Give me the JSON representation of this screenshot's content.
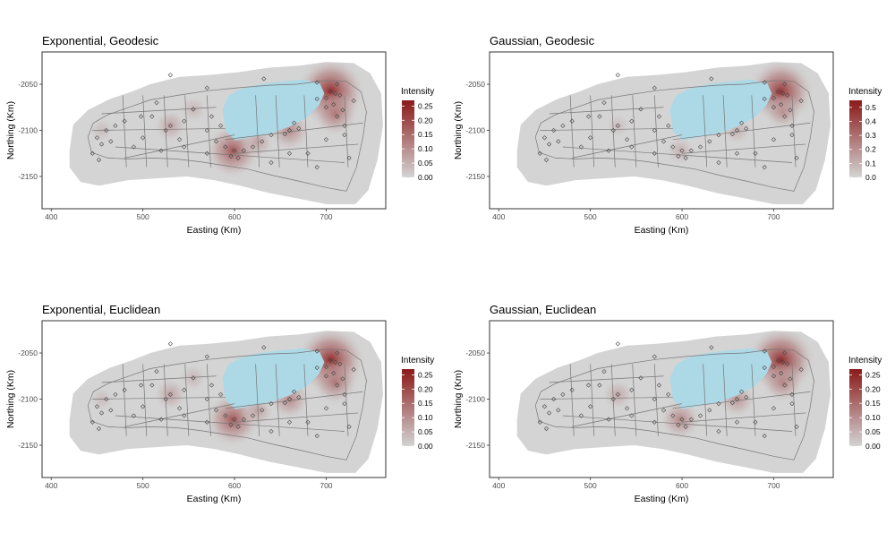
{
  "figure": {
    "colors": {
      "background_grey": "#d4d4d4",
      "lake": "#add8e6",
      "low": "#d3d3d3",
      "high": "#8b1a1a",
      "frame": "#333333",
      "text": "#000000",
      "tick_text": "#4d4d4d"
    }
  },
  "chart_data": [
    {
      "type": "heatmap",
      "title": "Exponential, Geodesic",
      "xlabel": "Easting (Km)",
      "ylabel": "Northing (Km)",
      "xlim": [
        390,
        765
      ],
      "ylim": [
        -2185,
        -2015
      ],
      "x_ticks": [
        400,
        500,
        600,
        700
      ],
      "x_tick_labels": [
        "400",
        "500",
        "600",
        "700"
      ],
      "y_ticks": [
        -2050,
        -2100,
        -2150
      ],
      "y_tick_labels": [
        "-2050",
        "-2100",
        "-2150"
      ],
      "grid": false,
      "legend": {
        "title": "Intensity",
        "placement": "right",
        "min": 0,
        "max": 0.27,
        "ticks": [
          0.0,
          0.05,
          0.1,
          0.15,
          0.2,
          0.25
        ],
        "tick_labels": [
          "0.00",
          "0.05",
          "0.10",
          "0.15",
          "0.20",
          "0.25"
        ]
      },
      "hotspots": [
        {
          "x": 705,
          "y": -2058,
          "intensity": 0.26
        },
        {
          "x": 710,
          "y": -2082,
          "intensity": 0.14
        },
        {
          "x": 598,
          "y": -2122,
          "intensity": 0.19
        },
        {
          "x": 660,
          "y": -2100,
          "intensity": 0.12
        },
        {
          "x": 625,
          "y": -2113,
          "intensity": 0.08
        },
        {
          "x": 530,
          "y": -2095,
          "intensity": 0.08
        },
        {
          "x": 555,
          "y": -2077,
          "intensity": 0.05
        },
        {
          "x": 455,
          "y": -2100,
          "intensity": 0.04
        }
      ]
    },
    {
      "type": "heatmap",
      "title": "Gaussian, Geodesic",
      "xlabel": "Easting (Km)",
      "ylabel": "Northing (Km)",
      "xlim": [
        390,
        765
      ],
      "ylim": [
        -2185,
        -2015
      ],
      "x_ticks": [
        400,
        500,
        600,
        700
      ],
      "x_tick_labels": [
        "400",
        "500",
        "600",
        "700"
      ],
      "y_ticks": [
        -2050,
        -2100,
        -2150
      ],
      "y_tick_labels": [
        "-2050",
        "-2100",
        "-2150"
      ],
      "grid": false,
      "legend": {
        "title": "Intensity",
        "placement": "right",
        "min": 0,
        "max": 0.55,
        "ticks": [
          0.0,
          0.1,
          0.2,
          0.3,
          0.4,
          0.5
        ],
        "tick_labels": [
          "0.0",
          "0.1",
          "0.2",
          "0.3",
          "0.4",
          "0.5"
        ]
      },
      "hotspots": [
        {
          "x": 708,
          "y": -2058,
          "intensity": 0.5
        },
        {
          "x": 710,
          "y": -2080,
          "intensity": 0.2
        },
        {
          "x": 598,
          "y": -2122,
          "intensity": 0.12
        },
        {
          "x": 660,
          "y": -2100,
          "intensity": 0.12
        },
        {
          "x": 530,
          "y": -2095,
          "intensity": 0.08
        }
      ]
    },
    {
      "type": "heatmap",
      "title": "Exponential, Euclidean",
      "xlabel": "Easting (Km)",
      "ylabel": "Northing (Km)",
      "xlim": [
        390,
        765
      ],
      "ylim": [
        -2185,
        -2015
      ],
      "x_ticks": [
        400,
        500,
        600,
        700
      ],
      "x_tick_labels": [
        "400",
        "500",
        "600",
        "700"
      ],
      "y_ticks": [
        -2050,
        -2100,
        -2150
      ],
      "y_tick_labels": [
        "-2050",
        "-2100",
        "-2150"
      ],
      "grid": false,
      "legend": {
        "title": "Intensity",
        "placement": "right",
        "min": 0,
        "max": 0.27,
        "ticks": [
          0.0,
          0.05,
          0.1,
          0.15,
          0.2,
          0.25
        ],
        "tick_labels": [
          "0.00",
          "0.05",
          "0.10",
          "0.15",
          "0.20",
          "0.25"
        ]
      },
      "hotspots": [
        {
          "x": 705,
          "y": -2058,
          "intensity": 0.26
        },
        {
          "x": 710,
          "y": -2082,
          "intensity": 0.14
        },
        {
          "x": 598,
          "y": -2122,
          "intensity": 0.19
        },
        {
          "x": 660,
          "y": -2100,
          "intensity": 0.12
        },
        {
          "x": 625,
          "y": -2113,
          "intensity": 0.08
        },
        {
          "x": 530,
          "y": -2095,
          "intensity": 0.08
        },
        {
          "x": 555,
          "y": -2077,
          "intensity": 0.05
        },
        {
          "x": 455,
          "y": -2100,
          "intensity": 0.04
        }
      ]
    },
    {
      "type": "heatmap",
      "title": "Gaussian, Euclidean",
      "xlabel": "Easting (Km)",
      "ylabel": "Northing (Km)",
      "xlim": [
        390,
        765
      ],
      "ylim": [
        -2185,
        -2015
      ],
      "x_ticks": [
        400,
        500,
        600,
        700
      ],
      "x_tick_labels": [
        "400",
        "500",
        "600",
        "700"
      ],
      "y_ticks": [
        -2050,
        -2100,
        -2150
      ],
      "y_tick_labels": [
        "-2050",
        "-2100",
        "-2150"
      ],
      "grid": false,
      "legend": {
        "title": "Intensity",
        "placement": "right",
        "min": 0,
        "max": 0.27,
        "ticks": [
          0.0,
          0.05,
          0.1,
          0.15,
          0.2,
          0.25
        ],
        "tick_labels": [
          "0.00",
          "0.05",
          "0.10",
          "0.15",
          "0.20",
          "0.25"
        ]
      },
      "hotspots": [
        {
          "x": 708,
          "y": -2058,
          "intensity": 0.26
        },
        {
          "x": 710,
          "y": -2082,
          "intensity": 0.12
        },
        {
          "x": 598,
          "y": -2122,
          "intensity": 0.12
        },
        {
          "x": 660,
          "y": -2100,
          "intensity": 0.1
        },
        {
          "x": 530,
          "y": -2095,
          "intensity": 0.07
        }
      ]
    }
  ]
}
